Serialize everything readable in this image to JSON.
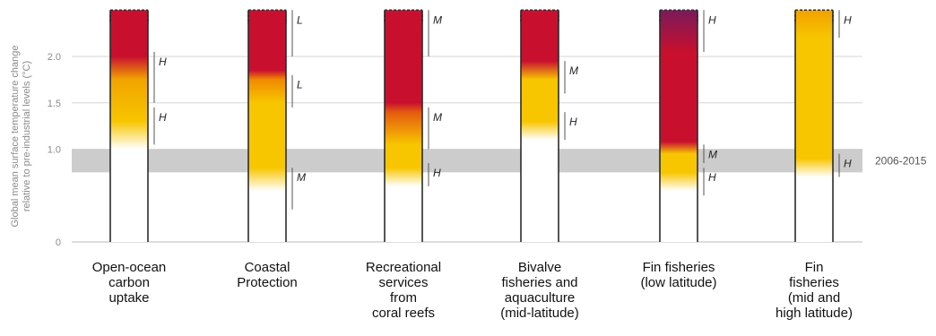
{
  "chart_data": {
    "type": "bar",
    "ylabel_lines": [
      "Global mean surface temperature change",
      "relative to pre-industrial levels (°C)"
    ],
    "ylim": [
      0,
      2.5
    ],
    "yticks": [
      {
        "value": 0,
        "label": "0"
      },
      {
        "value": 1.0,
        "label": "1.0"
      },
      {
        "value": 1.5,
        "label": "1.5"
      },
      {
        "value": 2.0,
        "label": "2.0"
      }
    ],
    "grid": true,
    "reference_band": {
      "from": 0.75,
      "to": 1.0,
      "label": "2006-2015",
      "color": "#cccccc"
    },
    "risk_colors": {
      "undetectable": "#ffffff",
      "moderate": "#f7c600",
      "high": "#c8102e",
      "very_high": "#7a1a5a"
    },
    "categories": [
      {
        "label_lines": [
          "Open-ocean",
          "carbon",
          "uptake"
        ],
        "top": 2.5,
        "stops": [
          {
            "value": 0.0,
            "color": "#ffffff"
          },
          {
            "value": 1.0,
            "color": "#ffffff"
          },
          {
            "value": 1.3,
            "color": "#f7c600"
          },
          {
            "value": 1.75,
            "color": "#f2a400"
          },
          {
            "value": 2.0,
            "color": "#c8102e"
          },
          {
            "value": 2.5,
            "color": "#c8102e"
          }
        ],
        "confidence": [
          {
            "from": 1.5,
            "to": 2.05,
            "label": "H"
          },
          {
            "from": 1.05,
            "to": 1.45,
            "label": "H"
          }
        ]
      },
      {
        "label_lines": [
          "Coastal",
          "Protection"
        ],
        "top": 2.5,
        "stops": [
          {
            "value": 0.0,
            "color": "#ffffff"
          },
          {
            "value": 0.55,
            "color": "#ffffff"
          },
          {
            "value": 0.8,
            "color": "#f7c600"
          },
          {
            "value": 1.5,
            "color": "#f7c600"
          },
          {
            "value": 1.75,
            "color": "#f08a00"
          },
          {
            "value": 1.85,
            "color": "#c8102e"
          },
          {
            "value": 2.5,
            "color": "#c8102e"
          }
        ],
        "confidence": [
          {
            "from": 2.0,
            "to": 2.5,
            "label": "L"
          },
          {
            "from": 1.45,
            "to": 1.8,
            "label": "L",
            "upright": true
          },
          {
            "from": 0.35,
            "to": 0.8,
            "label": "M"
          }
        ]
      },
      {
        "label_lines": [
          "Recreational",
          "services",
          "from",
          "coral reefs"
        ],
        "top": 2.5,
        "stops": [
          {
            "value": 0.0,
            "color": "#ffffff"
          },
          {
            "value": 0.6,
            "color": "#ffffff"
          },
          {
            "value": 0.8,
            "color": "#f7c600"
          },
          {
            "value": 1.05,
            "color": "#f7c600"
          },
          {
            "value": 1.4,
            "color": "#e45a10"
          },
          {
            "value": 1.5,
            "color": "#c8102e"
          },
          {
            "value": 2.5,
            "color": "#c8102e"
          }
        ],
        "confidence": [
          {
            "from": 2.0,
            "to": 2.5,
            "label": "M"
          },
          {
            "from": 1.0,
            "to": 1.45,
            "label": "M"
          },
          {
            "from": 0.6,
            "to": 0.85,
            "label": "H"
          }
        ]
      },
      {
        "label_lines": [
          "Bivalve",
          "fisheries and",
          "aquaculture",
          "(mid-latitude)"
        ],
        "top": 2.5,
        "stops": [
          {
            "value": 0.0,
            "color": "#ffffff"
          },
          {
            "value": 1.1,
            "color": "#ffffff"
          },
          {
            "value": 1.3,
            "color": "#f7c600"
          },
          {
            "value": 1.75,
            "color": "#f7c600"
          },
          {
            "value": 1.95,
            "color": "#c8102e"
          },
          {
            "value": 2.5,
            "color": "#c8102e"
          }
        ],
        "confidence": [
          {
            "from": 1.6,
            "to": 1.95,
            "label": "M"
          },
          {
            "from": 1.1,
            "to": 1.4,
            "label": "H"
          }
        ]
      },
      {
        "label_lines": [
          "Fin fisheries",
          "(low latitude)"
        ],
        "top": 2.5,
        "stops": [
          {
            "value": 0.0,
            "color": "#ffffff"
          },
          {
            "value": 0.55,
            "color": "#ffffff"
          },
          {
            "value": 0.75,
            "color": "#f7c600"
          },
          {
            "value": 0.95,
            "color": "#f7c600"
          },
          {
            "value": 1.08,
            "color": "#c8102e"
          },
          {
            "value": 2.05,
            "color": "#c8102e"
          },
          {
            "value": 2.5,
            "color": "#7a1a5a"
          }
        ],
        "confidence": [
          {
            "from": 2.05,
            "to": 2.5,
            "label": "H"
          },
          {
            "from": 0.85,
            "to": 1.05,
            "label": "M"
          },
          {
            "from": 0.5,
            "to": 0.8,
            "label": "H"
          }
        ]
      },
      {
        "label_lines": [
          "Fin",
          "fisheries",
          "(mid and",
          "high latitude)"
        ],
        "top": 2.5,
        "stops": [
          {
            "value": 0.0,
            "color": "#ffffff"
          },
          {
            "value": 0.7,
            "color": "#ffffff"
          },
          {
            "value": 0.9,
            "color": "#f7c600"
          },
          {
            "value": 2.2,
            "color": "#f7c600"
          },
          {
            "value": 2.5,
            "color": "#f2a000"
          }
        ],
        "confidence": [
          {
            "from": 2.2,
            "to": 2.5,
            "label": "H"
          },
          {
            "from": 0.7,
            "to": 0.95,
            "label": "H"
          }
        ]
      }
    ]
  }
}
